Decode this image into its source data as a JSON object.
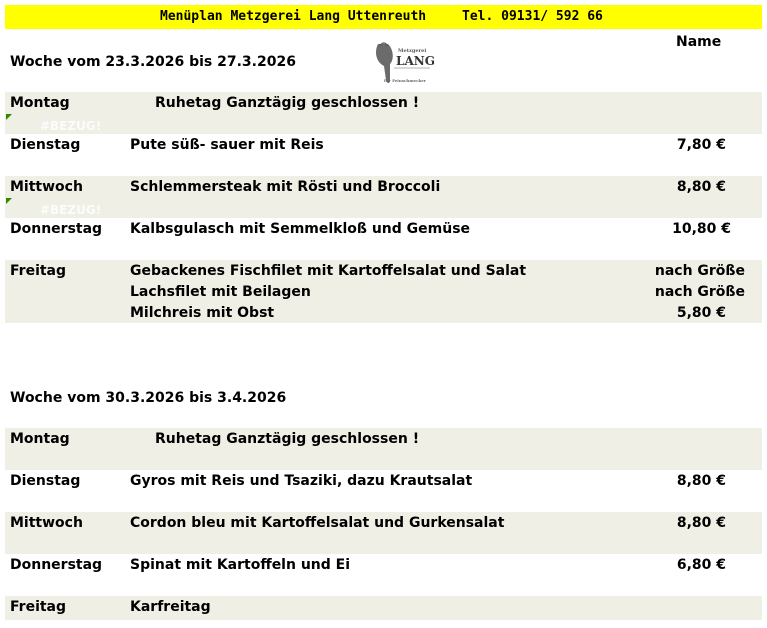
{
  "header": {
    "title": "Menüplan Metzgerei Lang Uttenreuth",
    "phone": "Tel.  09131/ 592 66",
    "name_column": "Name",
    "logo_text": "LANG"
  },
  "week1": {
    "title": "Woche vom 23.3.2026 bis 27.3.2026",
    "rows": [
      {
        "day": "Montag",
        "dish": "Ruhetag Ganztägig geschlossen !",
        "price": ""
      },
      {
        "day": "Dienstag",
        "dish": "Pute süß- sauer mit Reis",
        "price": "7,80 €"
      },
      {
        "day": "Mittwoch",
        "dish": "Schlemmersteak mit Rösti und Broccoli",
        "price": "8,80 €"
      },
      {
        "day": "Donnerstag",
        "dish": "Kalbsgulasch mit Semmelkloß und Gemüse",
        "price": "10,80 €"
      },
      {
        "day": "Freitag",
        "dish": "Gebackenes Fischfilet mit Kartoffelsalat und Salat",
        "price": "nach Größe"
      },
      {
        "day": "",
        "dish": "Lachsfilet mit Beilagen",
        "price": "nach Größe"
      },
      {
        "day": "",
        "dish": "Milchreis mit Obst",
        "price": "5,80 €"
      }
    ],
    "ref_errors": [
      "#BEZUG!",
      "#BEZUG!"
    ]
  },
  "week2": {
    "title": "Woche vom 30.3.2026 bis 3.4.2026",
    "rows": [
      {
        "day": "Montag",
        "dish": "Ruhetag Ganztägig geschlossen !",
        "price": ""
      },
      {
        "day": "Dienstag",
        "dish": "Gyros mit Reis und Tsaziki, dazu Krautsalat",
        "price": "8,80 €"
      },
      {
        "day": "Mittwoch",
        "dish": "Cordon bleu mit Kartoffelsalat und Gurkensalat",
        "price": "8,80 €"
      },
      {
        "day": "Donnerstag",
        "dish": "Spinat mit Kartoffeln und Ei",
        "price": "6,80 €"
      },
      {
        "day": "Freitag",
        "dish": "Karfreitag",
        "price": ""
      }
    ]
  },
  "colors": {
    "header_bg": "#ffff00",
    "row_bg": "#efefe6",
    "error_marker": "#2e8b00"
  }
}
